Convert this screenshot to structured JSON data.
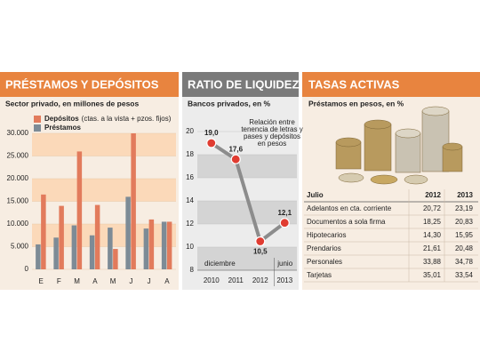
{
  "panels": [
    {
      "title": "PRÉSTAMOS Y DEPÓSITOS",
      "subtitle": "Sector privado, en millones de pesos"
    },
    {
      "title": "RATIO DE LIQUIDEZ",
      "subtitle": "Bancos privados, en %"
    },
    {
      "title": "TASAS ACTIVAS",
      "subtitle": "Préstamos en pesos, en %"
    }
  ],
  "chart_data": [
    {
      "type": "bar",
      "categories": [
        "E",
        "F",
        "M",
        "A",
        "M",
        "J",
        "J",
        "A"
      ],
      "series": [
        {
          "name": "Depósitos",
          "legend_note": "(ctas. a la vista + pzos. fijos)",
          "color": "#e27b5c",
          "values": [
            16500,
            14000,
            26000,
            14200,
            4500,
            30000,
            11000,
            10500
          ]
        },
        {
          "name": "Préstamos",
          "color": "#7d8b96",
          "values": [
            5500,
            7000,
            9700,
            7500,
            9200,
            16000,
            9000,
            10500
          ]
        }
      ],
      "ylim": [
        0,
        30000
      ],
      "yticks": [
        0,
        {
          "value": 5000,
          "label": "5.000"
        },
        {
          "value": 10000,
          "label": "10.000"
        },
        {
          "value": 15000,
          "label": "15.000"
        },
        {
          "value": 20000,
          "label": "20.000"
        },
        {
          "value": 25000,
          "label": "25.000"
        },
        {
          "value": 30000,
          "label": "30.000"
        }
      ],
      "grid": true
    },
    {
      "type": "line",
      "categories": [
        "2010",
        "2011",
        "2012",
        "2013"
      ],
      "series": [
        {
          "name": "Ratio de liquidez",
          "color": "#8c8c8c",
          "marker_color": "#e03c31",
          "values": [
            19.0,
            17.6,
            10.5,
            12.1
          ],
          "value_labels": [
            "19,0",
            "17,6",
            "10,5",
            "12,1"
          ]
        }
      ],
      "ylim": [
        8,
        20
      ],
      "yticks": [
        8,
        10,
        12,
        14,
        16,
        18,
        20
      ],
      "grid": true,
      "annotations": {
        "note": [
          "Relación entre",
          "tenencia de letras y",
          "pases y depósitos",
          "en pesos"
        ],
        "start": "diciembre",
        "end": "junio"
      }
    }
  ],
  "table": {
    "header": [
      "Julio",
      "2012",
      "2013"
    ],
    "rows": [
      [
        "Adelantos en cta. corriente",
        "20,72",
        "23,19"
      ],
      [
        "Documentos a sola firma",
        "18,25",
        "20,83"
      ],
      [
        "Hipotecarios",
        "14,30",
        "15,95"
      ],
      [
        "Prendarios",
        "21,61",
        "20,48"
      ],
      [
        "Personales",
        "33,88",
        "34,78"
      ],
      [
        "Tarjetas",
        "35,01",
        "33,54"
      ]
    ]
  }
}
